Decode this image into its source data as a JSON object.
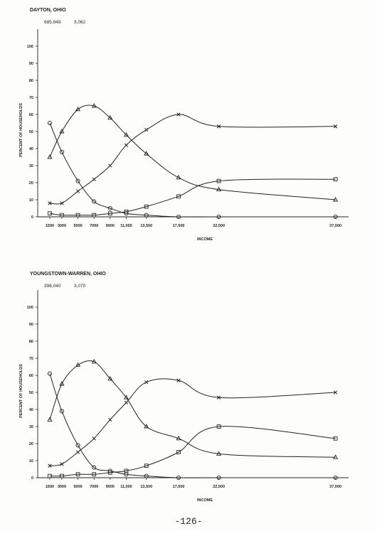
{
  "chart_data": [
    {
      "type": "line",
      "title": "DAYTON, OHIO",
      "numbers": [
        "685,949",
        "3,062"
      ],
      "y_label": "PERCENT OF HOUSEHOLDS",
      "x_label": "INCOME",
      "x": [
        1500,
        3000,
        5000,
        7000,
        9000,
        11000,
        13500,
        17500,
        22500,
        37000
      ],
      "xlim": [
        0,
        38000
      ],
      "xticks": [
        1500,
        3000,
        5000,
        7000,
        9000,
        {
          "value": 11000,
          "label": "11,000"
        },
        {
          "value": 13500,
          "label": "13,500"
        },
        {
          "value": 17500,
          "label": "17,500"
        },
        {
          "value": 22500,
          "label": "22,500"
        },
        {
          "value": 37000,
          "label": "37,000"
        }
      ],
      "ylim": [
        0,
        110
      ],
      "yticks": [
        0,
        10,
        20,
        30,
        40,
        50,
        60,
        70,
        80,
        90,
        100
      ],
      "series": [
        {
          "marker": "circle",
          "color": "#222",
          "values": [
            55,
            38,
            21,
            9,
            5,
            2,
            1,
            0,
            0,
            0
          ]
        },
        {
          "marker": "triangle",
          "color": "#222",
          "values": [
            35,
            50,
            63,
            65,
            58,
            48,
            37,
            23,
            16,
            10
          ]
        },
        {
          "marker": "x",
          "color": "#222",
          "values": [
            8,
            8,
            15,
            22,
            30,
            42,
            51,
            60,
            53,
            53
          ]
        },
        {
          "marker": "square",
          "color": "#222",
          "values": [
            2,
            1,
            1,
            1,
            2,
            3,
            6,
            12,
            21,
            22
          ]
        }
      ]
    },
    {
      "type": "line",
      "title": "YOUNGSTOWN-WARREN, OHIO",
      "numbers": [
        "396,040",
        "3,070"
      ],
      "y_label": "PERCENT OF HOUSEHOLDS",
      "x_label": "INCOME",
      "x": [
        1500,
        3000,
        5000,
        7000,
        9000,
        11000,
        13500,
        17500,
        22500,
        37000
      ],
      "xlim": [
        0,
        38000
      ],
      "xticks": [
        1500,
        3000,
        5000,
        7000,
        9000,
        {
          "value": 11000,
          "label": "11,000"
        },
        {
          "value": 13500,
          "label": "13,500"
        },
        {
          "value": 17500,
          "label": "17,500"
        },
        {
          "value": 22500,
          "label": "22,500"
        },
        {
          "value": 37000,
          "label": "37,000"
        }
      ],
      "ylim": [
        0,
        110
      ],
      "yticks": [
        0,
        10,
        20,
        30,
        40,
        50,
        60,
        70,
        80,
        90,
        100
      ],
      "series": [
        {
          "marker": "circle",
          "color": "#222",
          "values": [
            61,
            39,
            19,
            6,
            4,
            2,
            1,
            0,
            0,
            0
          ]
        },
        {
          "marker": "triangle",
          "color": "#222",
          "values": [
            34,
            55,
            66,
            68,
            58,
            47,
            30,
            23,
            14,
            12
          ]
        },
        {
          "marker": "x",
          "color": "#222",
          "values": [
            7,
            8,
            15,
            23,
            34,
            44,
            56,
            57,
            47,
            50
          ]
        },
        {
          "marker": "square",
          "color": "#222",
          "values": [
            1,
            1,
            2,
            2,
            3,
            4,
            7,
            15,
            30,
            23
          ]
        }
      ]
    }
  ],
  "page_number": "-126-"
}
